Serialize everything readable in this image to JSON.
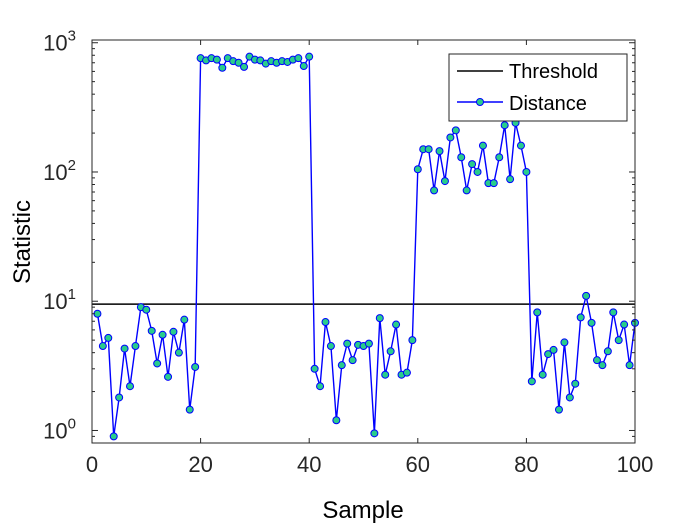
{
  "chart_data": {
    "type": "line",
    "title": "",
    "xlabel": "Sample",
    "ylabel": "Statistic",
    "xlim": [
      0,
      100
    ],
    "ylim": [
      0.8,
      1050
    ],
    "yscale": "log",
    "grid": false,
    "legend_position": "top-right",
    "x_ticks": [
      {
        "value": 0,
        "label": "0"
      },
      {
        "value": 20,
        "label": "20"
      },
      {
        "value": 40,
        "label": "40"
      },
      {
        "value": 60,
        "label": "60"
      },
      {
        "value": 80,
        "label": "80"
      },
      {
        "value": 100,
        "label": "100"
      }
    ],
    "y_ticks": [
      {
        "value": 1,
        "base": "10",
        "exp": "0"
      },
      {
        "value": 10,
        "base": "10",
        "exp": "1"
      },
      {
        "value": 100,
        "base": "10",
        "exp": "2"
      },
      {
        "value": 1000,
        "base": "10",
        "exp": "3"
      }
    ],
    "threshold": {
      "name": "Threshold",
      "value": 9.5,
      "color": "#000000"
    },
    "series": [
      {
        "name": "Distance",
        "line_color": "#0000ff",
        "marker_fill": "#29cc8c",
        "x": [
          1,
          2,
          3,
          4,
          5,
          6,
          7,
          8,
          9,
          10,
          11,
          12,
          13,
          14,
          15,
          16,
          17,
          18,
          19,
          20,
          21,
          22,
          23,
          24,
          25,
          26,
          27,
          28,
          29,
          30,
          31,
          32,
          33,
          34,
          35,
          36,
          37,
          38,
          39,
          40,
          41,
          42,
          43,
          44,
          45,
          46,
          47,
          48,
          49,
          50,
          51,
          52,
          53,
          54,
          55,
          56,
          57,
          58,
          59,
          60,
          61,
          62,
          63,
          64,
          65,
          66,
          67,
          68,
          69,
          70,
          71,
          72,
          73,
          74,
          75,
          76,
          77,
          78,
          79,
          80,
          81,
          82,
          83,
          84,
          85,
          86,
          87,
          88,
          89,
          90,
          91,
          92,
          93,
          94,
          95,
          96,
          97,
          98,
          99,
          100
        ],
        "values": [
          8.0,
          4.5,
          5.2,
          0.9,
          1.8,
          4.3,
          2.2,
          4.5,
          9.0,
          8.6,
          5.9,
          3.3,
          5.5,
          2.6,
          5.8,
          4.0,
          7.2,
          1.45,
          3.1,
          760,
          730,
          760,
          740,
          640,
          760,
          720,
          700,
          650,
          780,
          740,
          730,
          690,
          720,
          700,
          720,
          710,
          740,
          760,
          660,
          780,
          3.0,
          2.2,
          6.9,
          4.5,
          1.2,
          3.2,
          4.7,
          3.5,
          4.6,
          4.5,
          4.7,
          0.95,
          7.4,
          2.7,
          4.1,
          6.6,
          2.7,
          2.8,
          5.0,
          105,
          150,
          150,
          72,
          145,
          85,
          185,
          210,
          130,
          72,
          115,
          100,
          160,
          82,
          82,
          130,
          230,
          88,
          240,
          160,
          100,
          2.4,
          8.2,
          2.7,
          3.9,
          4.2,
          1.45,
          4.8,
          1.8,
          2.3,
          7.5,
          11,
          6.8,
          3.5,
          3.2,
          4.1,
          8.2,
          5.0,
          6.6,
          3.2,
          6.8
        ]
      }
    ]
  }
}
